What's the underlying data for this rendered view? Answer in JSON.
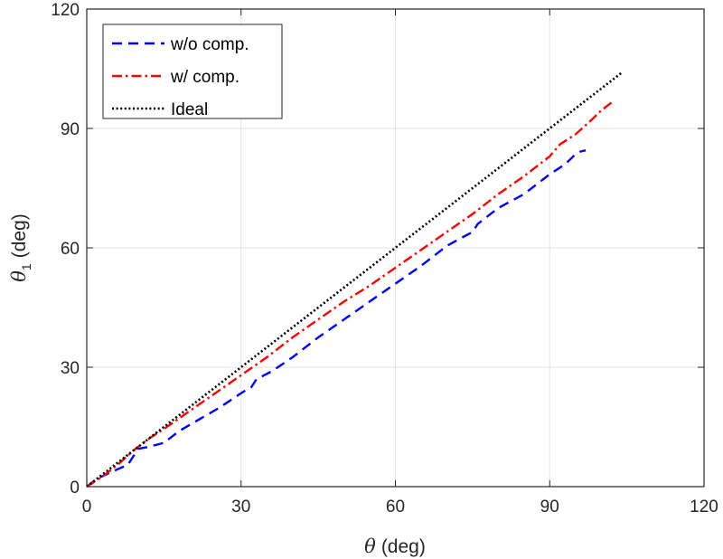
{
  "chart_data": {
    "type": "line",
    "title": "",
    "xlabel": {
      "symbol": "θ",
      "unit": "(deg)"
    },
    "ylabel": {
      "symbol": "θ",
      "subscript": "1",
      "unit": "(deg)"
    },
    "xlim": [
      0,
      120
    ],
    "ylim": [
      0,
      120
    ],
    "xticks": [
      0,
      30,
      60,
      90,
      120
    ],
    "yticks": [
      0,
      30,
      60,
      90,
      120
    ],
    "grid": true,
    "legend_position": "top-left",
    "series": [
      {
        "name": "w/o comp.",
        "color": "#0000ff",
        "style": "dashed",
        "x": [
          0,
          2,
          5,
          8,
          10,
          12,
          15,
          18,
          22,
          26,
          30,
          32,
          33,
          36,
          40,
          45,
          50,
          55,
          60,
          65,
          70,
          75,
          76,
          80,
          85,
          88,
          90,
          93,
          95,
          96,
          97
        ],
        "y": [
          0,
          2,
          3.8,
          5.5,
          9.5,
          10,
          11,
          14,
          17,
          20,
          23.5,
          25,
          27,
          29,
          32.5,
          37.5,
          42,
          46.5,
          51,
          55.5,
          60.5,
          64,
          66,
          70,
          73.5,
          76.5,
          78.5,
          81,
          83.5,
          84.2,
          84.5
        ]
      },
      {
        "name": "w/ comp.",
        "color": "#ff0000",
        "style": "dashdot",
        "x": [
          0,
          3,
          6,
          9,
          12,
          15,
          20,
          25,
          30,
          35,
          40,
          45,
          50,
          55,
          60,
          65,
          70,
          75,
          80,
          85,
          88,
          90,
          92,
          95,
          98,
          100,
          102
        ],
        "y": [
          0,
          2.5,
          5.5,
          9,
          12,
          14.5,
          19,
          23.5,
          28,
          32.5,
          37.5,
          42,
          46.5,
          50.5,
          55,
          59.5,
          64,
          68.5,
          73.5,
          78,
          81,
          83,
          86,
          88.5,
          92,
          94.5,
          96.5
        ]
      },
      {
        "name": "Ideal",
        "color": "#000000",
        "style": "dotted",
        "x": [
          0,
          104
        ],
        "y": [
          0,
          104
        ]
      }
    ]
  }
}
